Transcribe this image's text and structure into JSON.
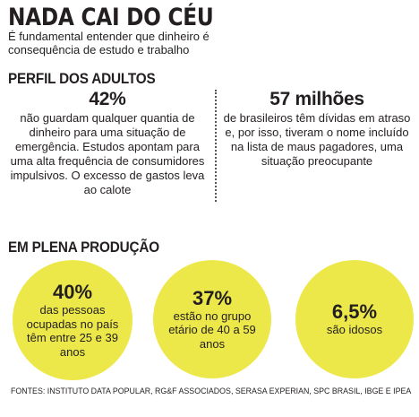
{
  "title": "NADA CAI DO CÉU",
  "subtitle": "É fundamental entender que dinheiro é consequência de estudo e trabalho",
  "adults": {
    "heading": "PERFIL DOS ADULTOS",
    "stats": [
      {
        "value": "42%",
        "text": "não guardam qualquer quantia de dinheiro para uma situação de emergência. Estudos apontam para uma alta frequência de consumidores impulsivos. O excesso de gastos leva ao calote"
      },
      {
        "value": "57 milhões",
        "text": "de brasileiros têm dívidas em atraso e, por isso, tiveram o nome incluído na lista de maus pagadores, uma situação preocupante"
      }
    ]
  },
  "production": {
    "heading": "EM PLENA PRODUÇÃO",
    "circles": [
      {
        "value": "40%",
        "text": "das pessoas ocupadas no país têm entre 25 e 39 anos"
      },
      {
        "value": "37%",
        "text": "estão no grupo etário de 40 a 59 anos"
      },
      {
        "value": "6,5%",
        "text": "são idosos"
      }
    ],
    "circle_color": "#ede84a"
  },
  "sources": "FONTES:  INSTITUTO DATA POPULAR, RG&F ASSOCIADOS, SERASA EXPERIAN, SPC BRASIL, IBGE E IPEA"
}
